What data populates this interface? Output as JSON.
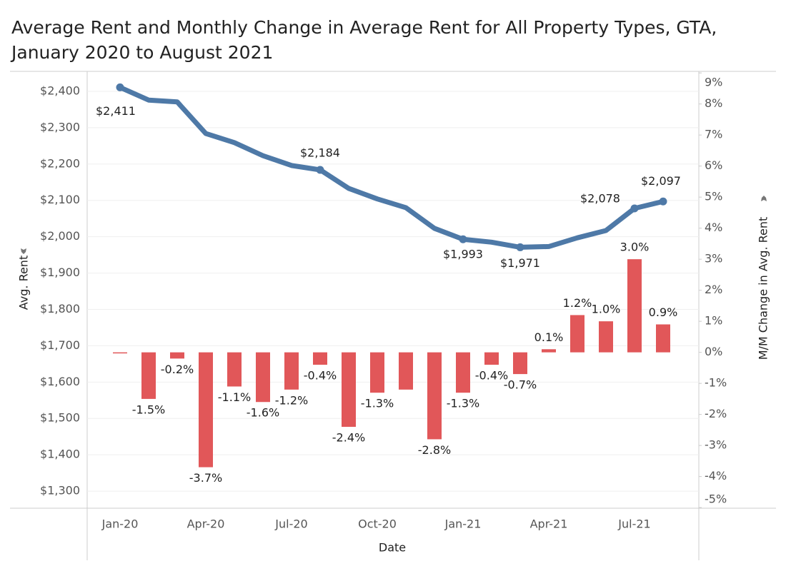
{
  "chart_data": {
    "type": "bar_line",
    "title": [
      "Average Rent and Monthly Change in Average Rent for All Property Types, GTA,",
      "January 2020 to August 2021"
    ],
    "x_label": "Date",
    "y_label": "Avg. Rent",
    "y2_label": "M/M Change in Avg. Rent",
    "categories": [
      "Jan-20",
      null,
      null,
      "Apr-20",
      null,
      null,
      "Jul-20",
      null,
      null,
      "Oct-20",
      null,
      null,
      "Jan-21",
      null,
      null,
      "Apr-21",
      null,
      null,
      "Jul-21",
      null
    ],
    "ylim": [
      1253,
      2455
    ],
    "yticks": [
      {
        "value": 1300,
        "label": "$1,300"
      },
      {
        "value": 1400,
        "label": "$1,400"
      },
      {
        "value": 1500,
        "label": "$1,500"
      },
      {
        "value": 1600,
        "label": "$1,600"
      },
      {
        "value": 1700,
        "label": "$1,700"
      },
      {
        "value": 1800,
        "label": "$1,800"
      },
      {
        "value": 1900,
        "label": "$1,900"
      },
      {
        "value": 2000,
        "label": "$2,000"
      },
      {
        "value": 2100,
        "label": "$2,100"
      },
      {
        "value": 2200,
        "label": "$2,200"
      },
      {
        "value": 2300,
        "label": "$2,300"
      },
      {
        "value": 2400,
        "label": "$2,400"
      }
    ],
    "y2lim": [
      -5.02,
      9.05
    ],
    "y2ticks": [
      {
        "value": -5,
        "label": "-5%"
      },
      {
        "value": -4,
        "label": "-4%"
      },
      {
        "value": -3,
        "label": "-3%"
      },
      {
        "value": -2,
        "label": "-2%"
      },
      {
        "value": -1,
        "label": "-1%"
      },
      {
        "value": 0,
        "label": "0%"
      },
      {
        "value": 1,
        "label": "1%"
      },
      {
        "value": 2,
        "label": "2%"
      },
      {
        "value": 3,
        "label": "3%"
      },
      {
        "value": 4,
        "label": "4%"
      },
      {
        "value": 5,
        "label": "5%"
      },
      {
        "value": 6,
        "label": "6%"
      },
      {
        "value": 7,
        "label": "7%"
      },
      {
        "value": 8,
        "label": "8%"
      },
      {
        "value": 9,
        "label": "9%"
      }
    ],
    "grid": true,
    "series": [
      {
        "name": "Avg. Rent",
        "type": "line",
        "color": "#4e79a7",
        "values": [
          2411,
          2376,
          2371,
          2284,
          2259,
          2223,
          2196,
          2184,
          2133,
          2104,
          2080,
          2023,
          1993,
          1985,
          1971,
          1973,
          1997,
          2017,
          2078,
          2097
        ],
        "value_labels": [
          "$2,411",
          null,
          null,
          null,
          null,
          null,
          null,
          "$2,184",
          null,
          null,
          null,
          null,
          "$1,993",
          null,
          "$1,971",
          null,
          null,
          null,
          "$2,078",
          "$2,097"
        ]
      },
      {
        "name": "M/M Change in Avg. Rent",
        "type": "bar",
        "axis": "y2",
        "color": "#e15759",
        "values": [
          0,
          -1.5,
          -0.2,
          -3.7,
          -1.1,
          -1.6,
          -1.2,
          -0.4,
          -2.4,
          -1.3,
          -1.2,
          -2.8,
          -1.3,
          -0.4,
          -0.7,
          0.1,
          1.2,
          1.0,
          3.0,
          0.9
        ],
        "value_labels": [
          null,
          "-1.5%",
          "-0.2%",
          "-3.7%",
          "-1.1%",
          "-1.6%",
          "-1.2%",
          "-0.4%",
          "-2.4%",
          "-1.3%",
          null,
          "-2.8%",
          "-1.3%",
          "-0.4%",
          "-0.7%",
          "0.1%",
          "1.2%",
          "1.0%",
          "3.0%",
          "0.9%"
        ]
      }
    ]
  }
}
